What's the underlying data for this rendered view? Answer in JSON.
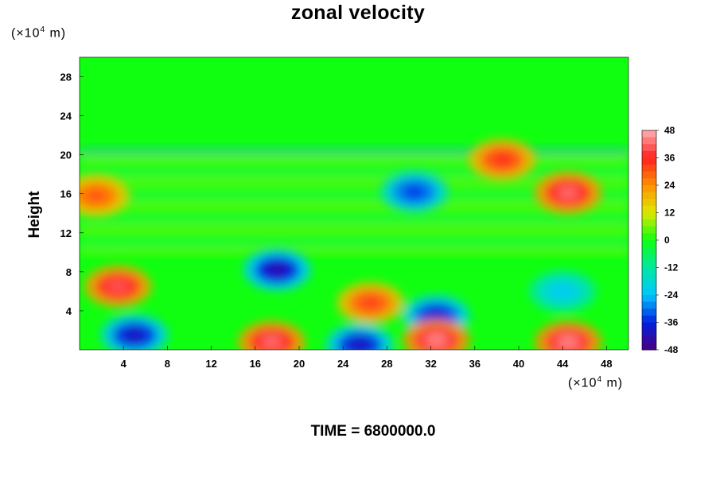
{
  "chart_data": {
    "type": "heatmap",
    "title": "zonal velocity",
    "xlabel": "",
    "ylabel": "Height",
    "x_unit_prefix": "(×10",
    "x_unit_exp": "4",
    "x_unit_suffix": " m)",
    "y_unit_prefix": "(×10",
    "y_unit_exp": "4",
    "y_unit_suffix": " m)",
    "xlim": [
      0,
      50
    ],
    "ylim": [
      0,
      30
    ],
    "x_ticks": [
      4,
      8,
      12,
      16,
      20,
      24,
      28,
      32,
      36,
      40,
      44,
      48
    ],
    "y_ticks": [
      4,
      8,
      12,
      16,
      20,
      24,
      28
    ],
    "colorbar": {
      "range": [
        -48,
        48
      ],
      "ticks": [
        48,
        36,
        24,
        12,
        0,
        -12,
        -24,
        -36,
        -48
      ],
      "colors": [
        "#ffb0b0",
        "#ff2020",
        "#ff9000",
        "#e0e800",
        "#10ff10",
        "#00e8a0",
        "#00c8ff",
        "#0020e0",
        "#4b0082"
      ]
    },
    "features": [
      {
        "x": 3.5,
        "y": 6.5,
        "value": 40
      },
      {
        "x": 5,
        "y": 1.5,
        "value": -40
      },
      {
        "x": 18,
        "y": 8.2,
        "value": -42
      },
      {
        "x": 17.5,
        "y": 0.8,
        "value": 42
      },
      {
        "x": 26.5,
        "y": 4.8,
        "value": 32
      },
      {
        "x": 25.5,
        "y": 0.5,
        "value": -40
      },
      {
        "x": 32.5,
        "y": 3.5,
        "value": -38
      },
      {
        "x": 32.5,
        "y": 1,
        "value": 44
      },
      {
        "x": 44,
        "y": 6,
        "value": -22
      },
      {
        "x": 44.5,
        "y": 0.8,
        "value": 44
      },
      {
        "x": 44.5,
        "y": 16.1,
        "value": 42
      },
      {
        "x": 30.5,
        "y": 16.2,
        "value": -34
      },
      {
        "x": 38.5,
        "y": 19.5,
        "value": 34
      },
      {
        "x": 1.5,
        "y": 15.8,
        "value": 30
      }
    ],
    "footer": "TIME = 6800000.0"
  }
}
